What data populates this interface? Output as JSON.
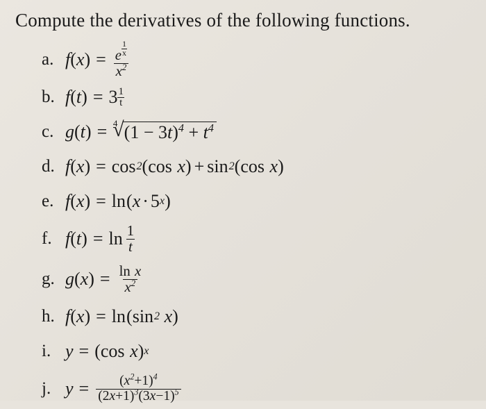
{
  "background_color": "#e8e4dd",
  "text_color": "#1a1a1a",
  "font_family": "Times New Roman",
  "prompt": "Compute the derivatives of the following functions.",
  "items": {
    "a": {
      "label": "a.",
      "lhs_fn": "f",
      "lhs_var": "x"
    },
    "b": {
      "label": "b.",
      "lhs_fn": "f",
      "lhs_var": "t",
      "base": "3",
      "exp_num": "1",
      "exp_den": "t"
    },
    "c": {
      "label": "c.",
      "lhs_fn": "g",
      "lhs_var": "t",
      "root_index": "4",
      "inner1": "(1 − 3",
      "inner2": ")",
      "outer": " + "
    },
    "d": {
      "label": "d.",
      "lhs_fn": "f",
      "lhs_var": "x"
    },
    "e": {
      "label": "e.",
      "lhs_fn": "f",
      "lhs_var": "x",
      "base": "5"
    },
    "f": {
      "label": "f.",
      "lhs_fn": "f",
      "lhs_var": "t",
      "num": "1",
      "den": "t"
    },
    "g": {
      "label": "g.",
      "lhs_fn": "g",
      "lhs_var": "x"
    },
    "h": {
      "label": "h.",
      "lhs_fn": "f",
      "lhs_var": "x"
    },
    "i": {
      "label": "i.",
      "lhs": "y"
    },
    "j": {
      "label": "j.",
      "lhs": "y"
    }
  },
  "sym": {
    "eq": "=",
    "plus": "+",
    "minus": "−",
    "dot": "·",
    "ln": "ln",
    "cos": "cos",
    "sin": "sin",
    "e": "e",
    "x": "x",
    "t": "t",
    "sq": "2",
    "p4": "4",
    "p3": "3",
    "p5": "5",
    "one": "1"
  }
}
